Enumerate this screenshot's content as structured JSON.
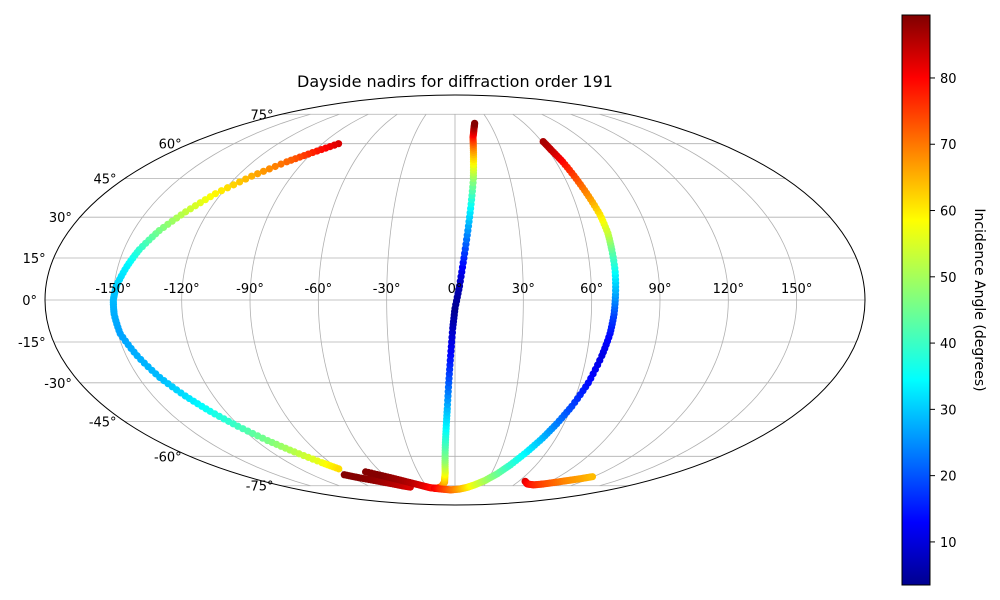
{
  "chart_data": {
    "type": "scatter",
    "projection": "mollweide",
    "title": "Dayside nadirs for diffraction order 191",
    "grid": true,
    "x_ticks": [
      -150,
      -120,
      -90,
      -60,
      -30,
      0,
      30,
      60,
      90,
      120,
      150
    ],
    "x_tick_labels": [
      "-150°",
      "-120°",
      "-90°",
      "-60°",
      "-30°",
      "0°",
      "30°",
      "60°",
      "90°",
      "120°",
      "150°"
    ],
    "y_ticks": [
      75,
      60,
      45,
      30,
      15,
      0,
      -15,
      -30,
      -45,
      -60,
      -75
    ],
    "y_tick_labels": [
      "75°",
      "60°",
      "45°",
      "30°",
      "15°",
      "0°",
      "-15°",
      "-30°",
      "-45°",
      "-60°",
      "-75°"
    ],
    "colorbar": {
      "label": "Incidence Angle (degrees)",
      "colormap": "jet",
      "range": [
        3.5,
        89.5
      ],
      "ticks": [
        10,
        20,
        30,
        40,
        50,
        60,
        70,
        80
      ],
      "tick_labels": [
        "10",
        "20",
        "30",
        "40",
        "50",
        "60",
        "70",
        "80"
      ]
    },
    "series": [
      {
        "points": [
          {
            "lon": -79,
            "lat": 60,
            "inc": 82
          },
          {
            "lon": -90,
            "lat": 56,
            "inc": 76
          },
          {
            "lon": -100,
            "lat": 52,
            "inc": 70
          },
          {
            "lon": -112,
            "lat": 46,
            "inc": 64
          },
          {
            "lon": -123,
            "lat": 39,
            "inc": 58
          },
          {
            "lon": -131,
            "lat": 32,
            "inc": 52
          },
          {
            "lon": -138,
            "lat": 25,
            "inc": 46
          },
          {
            "lon": -143,
            "lat": 18,
            "inc": 40
          },
          {
            "lon": -146,
            "lat": 12,
            "inc": 35
          },
          {
            "lon": -149,
            "lat": 5,
            "inc": 32
          },
          {
            "lon": -150,
            "lat": 0,
            "inc": 30
          },
          {
            "lon": -150,
            "lat": -5,
            "inc": 29
          },
          {
            "lon": -149,
            "lat": -12,
            "inc": 28
          },
          {
            "lon": -145,
            "lat": -20,
            "inc": 29
          },
          {
            "lon": -140,
            "lat": -28,
            "inc": 30
          },
          {
            "lon": -134,
            "lat": -35,
            "inc": 33
          },
          {
            "lon": -128,
            "lat": -41,
            "inc": 37
          },
          {
            "lon": -121,
            "lat": -47,
            "inc": 41
          },
          {
            "lon": -113,
            "lat": -53,
            "inc": 46
          },
          {
            "lon": -105,
            "lat": -58,
            "inc": 51
          },
          {
            "lon": -96,
            "lat": -63,
            "inc": 56
          },
          {
            "lon": -90,
            "lat": -66,
            "inc": 60
          }
        ]
      },
      {
        "points": [
          {
            "lon": -93,
            "lat": -69,
            "inc": 89
          },
          {
            "lon": -85,
            "lat": -70.5,
            "inc": 89
          },
          {
            "lon": -75,
            "lat": -72,
            "inc": 88
          },
          {
            "lon": -65,
            "lat": -73.5,
            "inc": 86
          },
          {
            "lon": -55,
            "lat": -75,
            "inc": 84
          },
          {
            "lon": -48,
            "lat": -75.8,
            "inc": 82
          }
        ]
      },
      {
        "points": [
          {
            "lon": -72,
            "lat": -67.5,
            "inc": 89
          },
          {
            "lon": -62,
            "lat": -69.5,
            "inc": 89
          },
          {
            "lon": -52,
            "lat": -71.5,
            "inc": 87
          },
          {
            "lon": -42,
            "lat": -73.5,
            "inc": 85
          },
          {
            "lon": -34,
            "lat": -75,
            "inc": 82
          },
          {
            "lon": -27,
            "lat": -76.2,
            "inc": 79
          },
          {
            "lon": -20,
            "lat": -76.5,
            "inc": 76
          },
          {
            "lon": -14,
            "lat": -75.5,
            "inc": 70
          },
          {
            "lon": -10,
            "lat": -73,
            "inc": 64
          },
          {
            "lon": -8,
            "lat": -68,
            "inc": 56
          },
          {
            "lon": -7,
            "lat": -62,
            "inc": 48
          },
          {
            "lon": -6,
            "lat": -55,
            "inc": 42
          },
          {
            "lon": -5,
            "lat": -48,
            "inc": 36
          },
          {
            "lon": -4,
            "lat": -40,
            "inc": 30
          },
          {
            "lon": -3,
            "lat": -30,
            "inc": 22
          },
          {
            "lon": -2,
            "lat": -20,
            "inc": 15
          },
          {
            "lon": -1,
            "lat": -10,
            "inc": 9
          },
          {
            "lon": 0,
            "lat": -3,
            "inc": 5
          },
          {
            "lon": 2,
            "lat": 5,
            "inc": 8
          },
          {
            "lon": 4,
            "lat": 15,
            "inc": 17
          },
          {
            "lon": 6,
            "lat": 25,
            "inc": 27
          },
          {
            "lon": 8,
            "lat": 35,
            "inc": 37
          },
          {
            "lon": 10,
            "lat": 45,
            "inc": 48
          },
          {
            "lon": 11,
            "lat": 52,
            "inc": 58
          },
          {
            "lon": 12,
            "lat": 58,
            "inc": 67
          },
          {
            "lon": 13,
            "lat": 63,
            "inc": 76
          },
          {
            "lon": 15,
            "lat": 67,
            "inc": 84
          },
          {
            "lon": 17,
            "lat": 70,
            "inc": 89
          }
        ]
      },
      {
        "points": [
          {
            "lon": -23,
            "lat": -76.5,
            "inc": 80
          },
          {
            "lon": -15,
            "lat": -77,
            "inc": 75
          },
          {
            "lon": -5,
            "lat": -77.5,
            "inc": 70
          },
          {
            "lon": 5,
            "lat": -77,
            "inc": 65
          },
          {
            "lon": 13,
            "lat": -76,
            "inc": 60
          },
          {
            "lon": 20,
            "lat": -74.5,
            "inc": 55
          },
          {
            "lon": 28,
            "lat": -72,
            "inc": 50
          },
          {
            "lon": 35,
            "lat": -68.5,
            "inc": 45
          },
          {
            "lon": 41,
            "lat": -64,
            "inc": 40
          },
          {
            "lon": 47,
            "lat": -58,
            "inc": 35
          },
          {
            "lon": 52,
            "lat": -52,
            "inc": 30
          },
          {
            "lon": 56,
            "lat": -46,
            "inc": 25
          },
          {
            "lon": 60,
            "lat": -39,
            "inc": 20
          },
          {
            "lon": 64,
            "lat": -30,
            "inc": 15
          },
          {
            "lon": 67,
            "lat": -20,
            "inc": 12
          },
          {
            "lon": 69,
            "lat": -12,
            "inc": 15
          },
          {
            "lon": 70,
            "lat": -5,
            "inc": 20
          },
          {
            "lon": 70.5,
            "lat": 2,
            "inc": 28
          },
          {
            "lon": 71,
            "lat": 10,
            "inc": 36
          },
          {
            "lon": 71,
            "lat": 18,
            "inc": 44
          },
          {
            "lon": 71,
            "lat": 24,
            "inc": 52
          },
          {
            "lon": 70,
            "lat": 31,
            "inc": 59
          },
          {
            "lon": 68,
            "lat": 38,
            "inc": 66
          },
          {
            "lon": 66,
            "lat": 45,
            "inc": 72
          },
          {
            "lon": 64,
            "lat": 52,
            "inc": 78
          },
          {
            "lon": 62,
            "lat": 57,
            "inc": 83
          },
          {
            "lon": 61,
            "lat": 61,
            "inc": 86
          }
        ]
      },
      {
        "points": [
          {
            "lon": 66,
            "lat": -72.5,
            "inc": 82
          },
          {
            "lon": 72,
            "lat": -74,
            "inc": 79
          },
          {
            "lon": 80,
            "lat": -74.5,
            "inc": 76
          },
          {
            "lon": 88,
            "lat": -74,
            "inc": 73
          },
          {
            "lon": 97,
            "lat": -73,
            "inc": 70
          },
          {
            "lon": 105,
            "lat": -72,
            "inc": 67
          },
          {
            "lon": 113,
            "lat": -71,
            "inc": 65
          },
          {
            "lon": 119,
            "lat": -70,
            "inc": 63
          }
        ]
      }
    ]
  }
}
